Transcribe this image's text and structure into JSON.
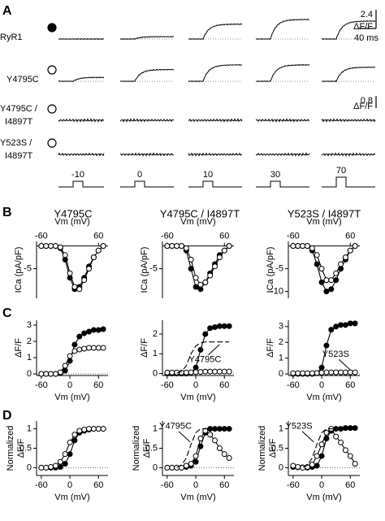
{
  "panel_labels": [
    "A",
    "B",
    "C",
    "D"
  ],
  "column_titles": [
    "Y4795C",
    "Y4795C / I4897T",
    "Y523S / I4897T"
  ],
  "panel_a": {
    "voltages": [
      -10,
      0,
      10,
      30,
      70
    ],
    "time_scale": "40 ms",
    "groups": [
      {
        "scale": 2.4,
        "scale_unit": "ΔF/F",
        "rows": [
          {
            "label": [
              "RyR1"
            ],
            "icon": "filled",
            "amplitudes": [
              0,
              0.3,
              1.9,
              2.5,
              2.3
            ]
          },
          {
            "label": [
              "Y4795C"
            ],
            "icon": "open",
            "amplitudes": [
              0.5,
              1.5,
              2.1,
              2.1,
              1.8
            ]
          }
        ]
      },
      {
        "scale": 0.8,
        "scale_unit": "ΔF/F",
        "rows": [
          {
            "label": [
              "Y4795C /",
              "I4897T"
            ],
            "icon": "open",
            "amplitudes": [
              0,
              0,
              0,
              0,
              0
            ]
          },
          {
            "label": [
              "Y523S /",
              "I4897T"
            ],
            "icon": "open",
            "amplitudes": [
              0,
              0,
              0,
              0,
              0
            ]
          }
        ]
      }
    ]
  },
  "chart_data": [
    {
      "type": "scatter",
      "xlabel": "Vm (mV)",
      "ylabel": "ICa (pA/pF)",
      "x_axis_position": "top",
      "xlim": [
        -70,
        80
      ],
      "ylim": [
        -11.5,
        1
      ],
      "xticks": [
        -60,
        60
      ],
      "yticks": [
        -5
      ],
      "x": [
        -60,
        -50,
        -40,
        -30,
        -20,
        -10,
        0,
        10,
        20,
        30,
        40,
        50,
        60,
        70
      ],
      "series": [
        {
          "marker": "filled",
          "color": "#000000",
          "values": [
            0,
            0,
            0,
            0,
            -0.5,
            -3,
            -7,
            -9.5,
            -9,
            -7,
            -4.5,
            -2.5,
            -1,
            0
          ]
        },
        {
          "marker": "open",
          "color": "#000000",
          "values": [
            0,
            0,
            0,
            0,
            -0.3,
            -2,
            -6,
            -9,
            -9.5,
            -7.5,
            -5,
            -2.5,
            -1,
            0
          ]
        }
      ]
    },
    {
      "type": "scatter",
      "xlabel": "Vm (mV)",
      "ylabel": "ICa (pA/pF)",
      "x_axis_position": "top",
      "xlim": [
        -70,
        80
      ],
      "ylim": [
        -11.5,
        1
      ],
      "xticks": [
        -60,
        60
      ],
      "yticks": [
        -5
      ],
      "x": [
        -60,
        -50,
        -40,
        -30,
        -20,
        -10,
        0,
        10,
        20,
        30,
        40,
        50,
        60,
        70
      ],
      "series": [
        {
          "marker": "filled",
          "color": "#000000",
          "values": [
            0,
            0,
            0,
            0,
            -1,
            -5,
            -9,
            -9.5,
            -8,
            -6,
            -4,
            -2,
            -1,
            0
          ]
        },
        {
          "marker": "open",
          "color": "#000000",
          "values": [
            0,
            0,
            0,
            0,
            -0.5,
            -3,
            -7,
            -8.5,
            -8,
            -6.5,
            -4.5,
            -2.5,
            -1,
            0
          ]
        }
      ]
    },
    {
      "type": "scatter",
      "xlabel": "Vm (mV)",
      "ylabel": "ICa (pA/pF)",
      "x_axis_position": "top",
      "xlim": [
        -70,
        80
      ],
      "ylim": [
        -11.5,
        1
      ],
      "xticks": [
        -60,
        60
      ],
      "yticks": [
        -10,
        -5
      ],
      "x": [
        -60,
        -50,
        -40,
        -30,
        -20,
        -10,
        0,
        10,
        20,
        30,
        40,
        50,
        60,
        70
      ],
      "series": [
        {
          "marker": "filled",
          "color": "#000000",
          "values": [
            0,
            0,
            0,
            0,
            -1,
            -4,
            -8,
            -10,
            -9.5,
            -7.5,
            -5,
            -3,
            -1,
            0
          ]
        },
        {
          "marker": "open",
          "color": "#000000",
          "values": [
            0,
            0,
            0,
            0,
            -0.5,
            -2,
            -5,
            -7.5,
            -7.5,
            -6,
            -4,
            -2.5,
            -1,
            0
          ]
        }
      ]
    },
    {
      "type": "scatter",
      "xlabel": "Vm (mV)",
      "ylabel": "ΔF/F",
      "x_axis_position": "bottom",
      "zero_line": true,
      "xlim": [
        -70,
        80
      ],
      "ylim": [
        -0.1,
        3.3
      ],
      "xticks": [
        -60,
        0,
        60
      ],
      "yticks": [
        0,
        1,
        2,
        3
      ],
      "x": [
        -60,
        -50,
        -40,
        -30,
        -20,
        -10,
        0,
        10,
        20,
        30,
        40,
        50,
        60,
        70
      ],
      "series": [
        {
          "marker": "filled",
          "color": "#000000",
          "values": [
            0,
            0,
            0,
            0,
            0.05,
            0.2,
            0.8,
            1.8,
            2.3,
            2.5,
            2.6,
            2.7,
            2.7,
            2.75
          ]
        },
        {
          "marker": "open",
          "color": "#000000",
          "values": [
            0,
            0,
            0,
            0,
            0.1,
            0.5,
            1.1,
            1.4,
            1.5,
            1.55,
            1.6,
            1.6,
            1.6,
            1.6
          ]
        }
      ]
    },
    {
      "type": "scatter",
      "xlabel": "Vm (mV)",
      "ylabel": "ΔF/F",
      "x_axis_position": "bottom",
      "zero_line": true,
      "xlim": [
        -70,
        80
      ],
      "ylim": [
        -0.1,
        2.7
      ],
      "xticks": [
        -60,
        0,
        60
      ],
      "yticks": [
        0,
        1,
        2
      ],
      "x": [
        -60,
        -50,
        -40,
        -30,
        -20,
        -10,
        0,
        10,
        20,
        30,
        40,
        50,
        60,
        70
      ],
      "series": [
        {
          "marker": "filled",
          "color": "#000000",
          "values": [
            0,
            0,
            0,
            0,
            0,
            0.05,
            0.3,
            1.2,
            2.0,
            2.3,
            2.35,
            2.4,
            2.4,
            2.4
          ]
        },
        {
          "marker": "open",
          "color": "#000000",
          "values": [
            0.05,
            0.05,
            0.05,
            0.05,
            0.05,
            0.06,
            0.07,
            0.08,
            0.1,
            0.1,
            0.1,
            0.1,
            0.1,
            0.1
          ]
        },
        {
          "marker": "none",
          "style": "dashed",
          "color": "#000000",
          "values": [
            null,
            null,
            0.02,
            0.1,
            0.4,
            1.0,
            1.4,
            1.55,
            1.6,
            1.6,
            1.6,
            1.6,
            1.6,
            1.6
          ]
        }
      ],
      "annotations": [
        {
          "text": "Y4795C",
          "at": [
            50,
            1.6
          ]
        }
      ]
    },
    {
      "type": "scatter",
      "xlabel": "Vm (mV)",
      "ylabel": "ΔF/F",
      "x_axis_position": "bottom",
      "zero_line": true,
      "xlim": [
        -70,
        80
      ],
      "ylim": [
        -0.1,
        3.4
      ],
      "xticks": [
        -60,
        0,
        60
      ],
      "yticks": [
        0,
        1,
        2,
        3
      ],
      "x": [
        -60,
        -50,
        -40,
        -30,
        -20,
        -10,
        0,
        10,
        20,
        30,
        40,
        50,
        60,
        70
      ],
      "series": [
        {
          "marker": "filled",
          "color": "#000000",
          "values": [
            0,
            0,
            0,
            0,
            0,
            0.05,
            0.4,
            1.8,
            2.8,
            3.0,
            3.1,
            3.1,
            3.2,
            3.2
          ]
        },
        {
          "marker": "open",
          "color": "#000000",
          "values": [
            0.05,
            0.05,
            0.05,
            0.05,
            0.05,
            0.06,
            0.08,
            0.1,
            0.1,
            0.1,
            0.1,
            0.1,
            0.1,
            0.1
          ]
        }
      ],
      "annotations": [
        {
          "text": "Y523S",
          "at": [
            60,
            0.1
          ]
        }
      ]
    },
    {
      "type": "scatter",
      "xlabel": "Vm (mV)",
      "ylabel": [
        "Normalized",
        "ΔF/F"
      ],
      "x_axis_position": "bottom",
      "zero_line": true,
      "xlim": [
        -70,
        80
      ],
      "ylim": [
        -0.2,
        1.2
      ],
      "xticks": [
        -60,
        0,
        60
      ],
      "yticks": [
        0,
        0.5,
        1
      ],
      "x": [
        -60,
        -50,
        -40,
        -30,
        -20,
        -10,
        0,
        10,
        20,
        30,
        40,
        50,
        60,
        70
      ],
      "series": [
        {
          "marker": "filled",
          "color": "#000000",
          "values": [
            0,
            0,
            0,
            0,
            0.02,
            0.1,
            0.35,
            0.7,
            0.9,
            0.95,
            0.98,
            1,
            1,
            1
          ]
        },
        {
          "marker": "open",
          "color": "#000000",
          "values": [
            0,
            0,
            0.02,
            0.05,
            0.15,
            0.35,
            0.65,
            0.85,
            0.95,
            0.98,
            1,
            1,
            1,
            1
          ]
        }
      ]
    },
    {
      "type": "scatter",
      "xlabel": "Vm (mV)",
      "ylabel": [
        "Normalized",
        "ΔF/F"
      ],
      "x_axis_position": "bottom",
      "zero_line": true,
      "xlim": [
        -70,
        80
      ],
      "ylim": [
        -0.2,
        1.2
      ],
      "xticks": [
        -60,
        0,
        60
      ],
      "yticks": [
        0,
        0.5,
        1
      ],
      "x": [
        -60,
        -50,
        -40,
        -30,
        -20,
        -10,
        0,
        10,
        20,
        30,
        40,
        50,
        60,
        70
      ],
      "series": [
        {
          "marker": "filled",
          "color": "#000000",
          "values": [
            0,
            0,
            0,
            0,
            0.02,
            0.05,
            0.15,
            0.55,
            0.9,
            1,
            1,
            1,
            1,
            1
          ]
        },
        {
          "marker": "open",
          "color": "#000000",
          "values": [
            0,
            0,
            0,
            0,
            0.05,
            0.1,
            0.3,
            0.75,
            0.95,
            0.85,
            0.7,
            0.5,
            0.35,
            0.25
          ]
        },
        {
          "marker": "none",
          "style": "dashed",
          "color": "#000000",
          "values": [
            null,
            null,
            0.01,
            0.06,
            0.25,
            0.6,
            0.9,
            1,
            1,
            1,
            1,
            1,
            1,
            1
          ]
        }
      ],
      "annotations": [
        {
          "text": "Y4795C",
          "at": [
            -12,
            0.6
          ]
        }
      ]
    },
    {
      "type": "scatter",
      "xlabel": "Vm (mV)",
      "ylabel": [
        "Normalized",
        "ΔF/F"
      ],
      "x_axis_position": "bottom",
      "zero_line": true,
      "xlim": [
        -70,
        80
      ],
      "ylim": [
        -0.2,
        1.2
      ],
      "xticks": [
        -60,
        0,
        60
      ],
      "yticks": [
        0,
        0.5,
        1
      ],
      "x": [
        -60,
        -50,
        -40,
        -30,
        -20,
        -10,
        0,
        10,
        20,
        30,
        40,
        50,
        60,
        70
      ],
      "series": [
        {
          "marker": "filled",
          "color": "#000000",
          "values": [
            0.02,
            0.01,
            0.01,
            0,
            0.02,
            0.05,
            0.3,
            0.75,
            0.95,
            1,
            1,
            1.02,
            1.02,
            1.02
          ]
        },
        {
          "marker": "open",
          "color": "#000000",
          "values": [
            0.05,
            0.02,
            0,
            0.02,
            0.08,
            0.3,
            0.6,
            0.9,
            1,
            0.8,
            0.65,
            0.45,
            0.3,
            0.1
          ]
        },
        {
          "marker": "none",
          "style": "dashed",
          "color": "#000000",
          "values": [
            null,
            null,
            0.01,
            0.06,
            0.25,
            0.6,
            0.9,
            1,
            1,
            1,
            1,
            1,
            1,
            1
          ]
        }
      ],
      "annotations": [
        {
          "text": "Y523S",
          "at": [
            -17,
            0.6
          ]
        }
      ]
    }
  ]
}
